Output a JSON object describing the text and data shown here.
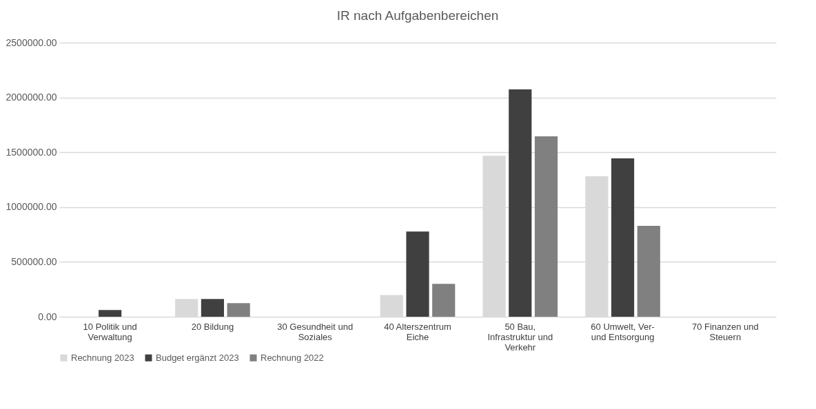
{
  "chart_data": {
    "type": "bar",
    "title": "IR nach Aufgabenbereichen",
    "categories": [
      "10 Politik und Verwaltung",
      "20 Bildung",
      "30 Gesundheit und Soziales",
      "40 Alterszentrum Eiche",
      "50 Bau, Infrastruktur und Verkehr",
      "60 Umwelt, Ver- und Entsorgung",
      "70 Finanzen und Steuern"
    ],
    "series": [
      {
        "name": "Rechnung 2023",
        "color": "#d9d9d9",
        "values": [
          0,
          162000,
          0,
          198000,
          1469000,
          1281000,
          0
        ]
      },
      {
        "name": "Budget ergänzt 2023",
        "color": "#404040",
        "values": [
          62000,
          162000,
          0,
          777000,
          2075000,
          1444000,
          0
        ]
      },
      {
        "name": "Rechnung 2022",
        "color": "#808080",
        "values": [
          0,
          124000,
          0,
          300000,
          1646000,
          829000,
          0
        ]
      }
    ],
    "ylim": [
      0,
      2500000
    ],
    "yticks": [
      {
        "value": 0,
        "label": "0.00"
      },
      {
        "value": 500000,
        "label": "500000.00"
      },
      {
        "value": 1000000,
        "label": "1000000.00"
      },
      {
        "value": 1500000,
        "label": "1500000.00"
      },
      {
        "value": 2000000,
        "label": "2000000.00"
      },
      {
        "value": 2500000,
        "label": "2500000.00"
      }
    ],
    "grid": "y",
    "legend": "bottom"
  }
}
